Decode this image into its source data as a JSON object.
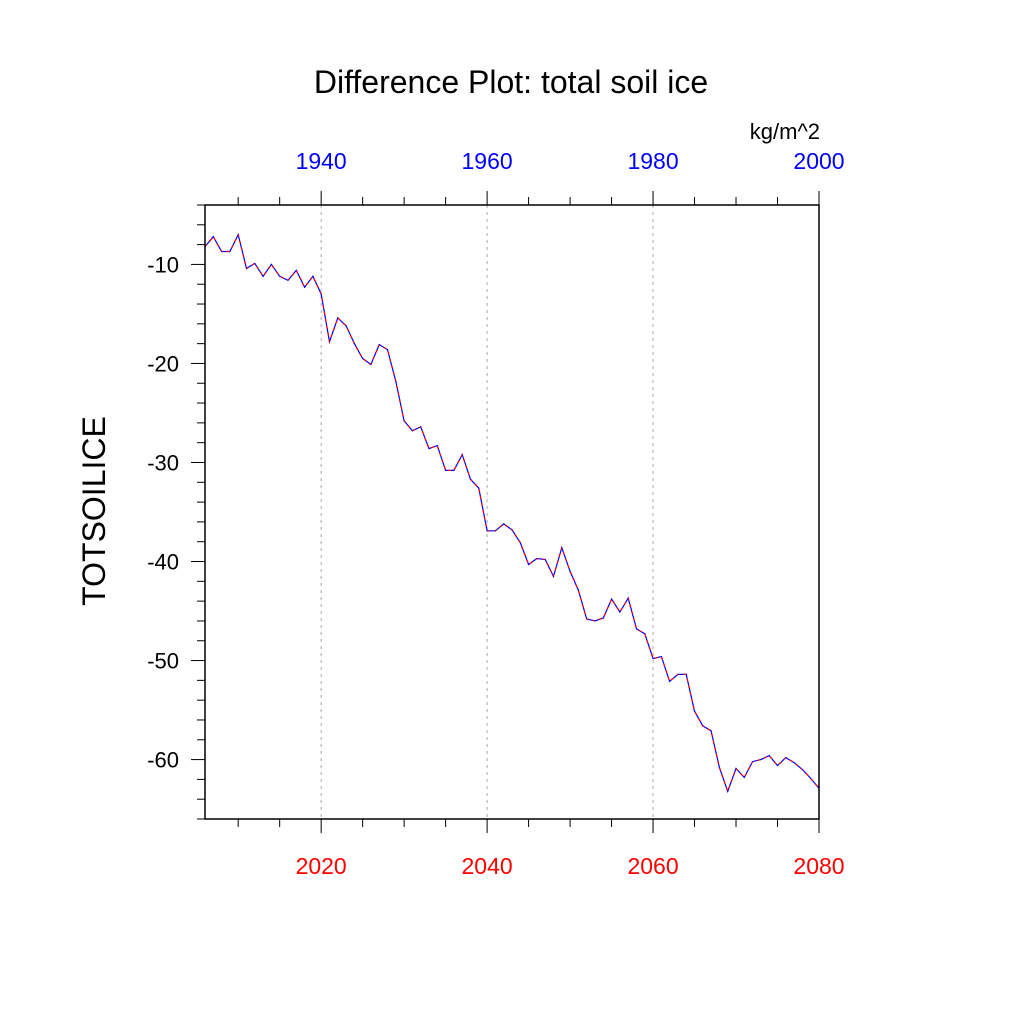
{
  "chart_data": {
    "type": "line",
    "title": "Difference Plot: total soil ice",
    "units_label": "kg/m^2",
    "ylabel": "TOTSOILICE",
    "xlabel": "",
    "xlim": [
      2006,
      2080
    ],
    "ylim": [
      -66,
      -4
    ],
    "yticks": [
      -10,
      -20,
      -30,
      -40,
      -50,
      -60
    ],
    "xticks_bottom": [
      2020,
      2040,
      2060,
      2080
    ],
    "xticks_top": [
      1940,
      1960,
      1980,
      2000
    ],
    "top_axis_offset_years": 80,
    "grid": "vertical dashed at bottom major ticks",
    "colors": {
      "line_primary": "#0000ff",
      "line_dash": "#ff0000",
      "bottom_ticks": "#ff0000",
      "top_ticks": "#0000ff",
      "grid": "#aaaaaa"
    },
    "x": [
      2006,
      2007,
      2008,
      2009,
      2010,
      2011,
      2012,
      2013,
      2014,
      2015,
      2016,
      2017,
      2018,
      2019,
      2020,
      2021,
      2022,
      2023,
      2024,
      2025,
      2026,
      2027,
      2028,
      2029,
      2030,
      2031,
      2032,
      2033,
      2034,
      2035,
      2036,
      2037,
      2038,
      2039,
      2040,
      2041,
      2042,
      2043,
      2044,
      2045,
      2046,
      2047,
      2048,
      2049,
      2050,
      2051,
      2052,
      2053,
      2054,
      2055,
      2056,
      2057,
      2058,
      2059,
      2060,
      2061,
      2062,
      2063,
      2064,
      2065,
      2066,
      2067,
      2068,
      2069,
      2070,
      2071,
      2072,
      2073,
      2074,
      2075,
      2076,
      2077,
      2078,
      2079,
      2080
    ],
    "series": [
      {
        "values": [
          -8.2,
          -7.2,
          -8.7,
          -8.7,
          -7.0,
          -10.4,
          -9.9,
          -11.2,
          -10.0,
          -11.2,
          -11.6,
          -10.6,
          -12.3,
          -11.2,
          -13.0,
          -17.8,
          -15.4,
          -16.2,
          -18.0,
          -19.5,
          -20.1,
          -18.1,
          -18.6,
          -21.8,
          -25.8,
          -26.8,
          -26.4,
          -28.6,
          -28.3,
          -30.8,
          -30.8,
          -29.2,
          -31.7,
          -32.6,
          -36.9,
          -36.9,
          -36.2,
          -36.8,
          -38.1,
          -40.3,
          -39.7,
          -39.8,
          -41.5,
          -38.6,
          -41.0,
          -42.9,
          -45.8,
          -46.0,
          -45.7,
          -43.8,
          -45.1,
          -43.7,
          -46.8,
          -47.3,
          -49.8,
          -49.6,
          -52.1,
          -51.4,
          -51.4,
          -55.1,
          -56.6,
          -57.1,
          -60.8,
          -63.2,
          -60.9,
          -61.8,
          -60.2,
          -60.0,
          -59.6,
          -60.6,
          -59.8,
          -60.3,
          -61.0,
          -61.9,
          -62.9
        ]
      }
    ]
  }
}
